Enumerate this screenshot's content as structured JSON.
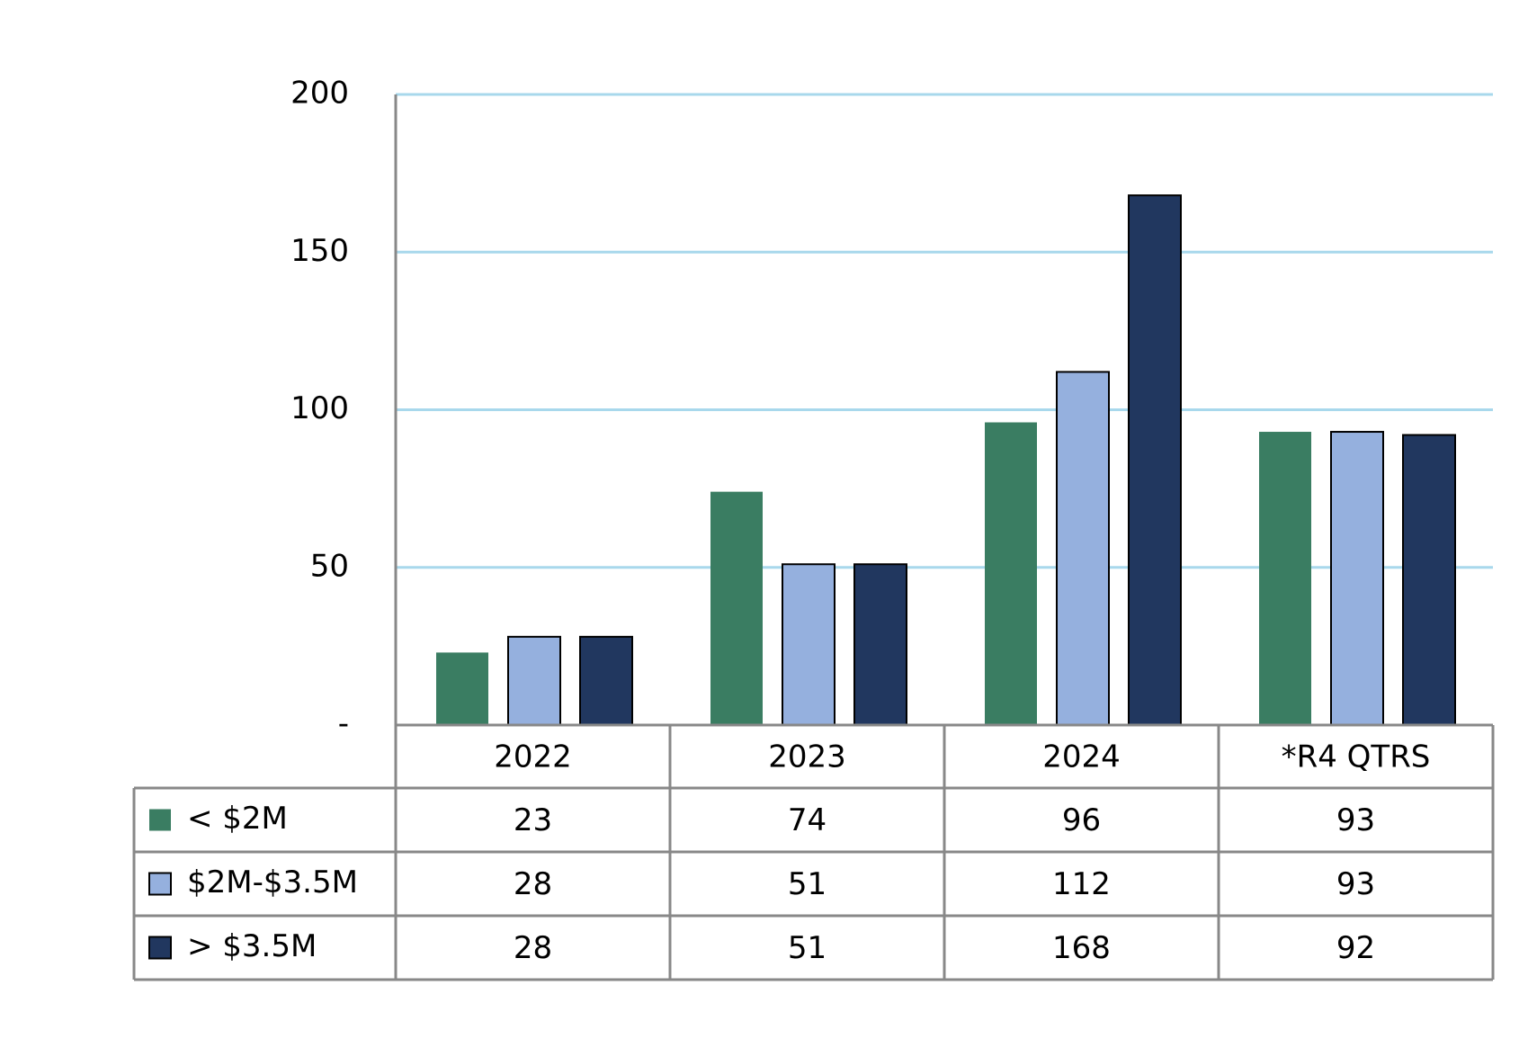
{
  "chart_data": {
    "type": "bar",
    "categories": [
      "2022",
      "2023",
      "2024",
      "*R4 QTRS"
    ],
    "series": [
      {
        "name": "< $2M",
        "color": "#3a7d62",
        "values": [
          23,
          74,
          96,
          93
        ]
      },
      {
        "name": "$2M-$3.5M",
        "color": "#95b0de",
        "values": [
          28,
          51,
          112,
          93
        ]
      },
      {
        "name": "> $3.5M",
        "color": "#21375f",
        "values": [
          28,
          51,
          168,
          92
        ]
      }
    ],
    "ylim": [
      0,
      200
    ],
    "yticks": [
      {
        "value": 0,
        "label": "-"
      },
      50,
      100,
      150,
      200
    ],
    "grid": true,
    "data_table": true
  }
}
